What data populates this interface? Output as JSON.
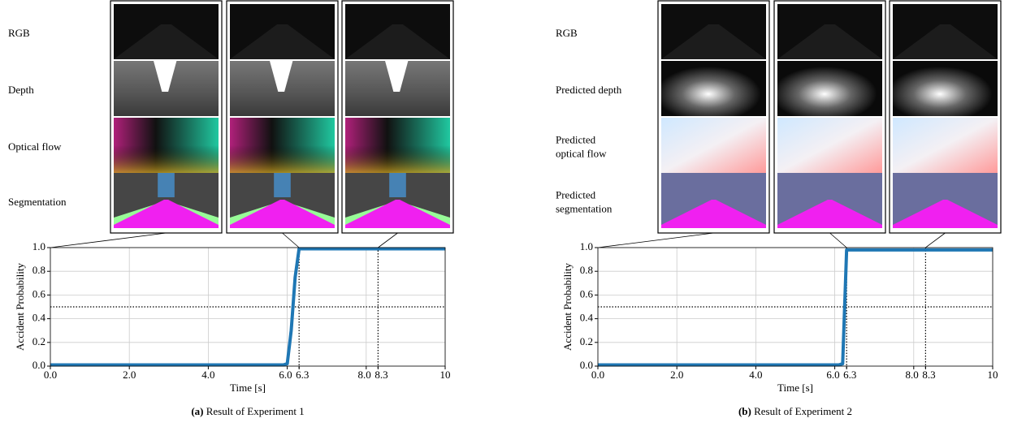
{
  "chart_data": [
    {
      "type": "line",
      "xlabel": "Time [s]",
      "ylabel": "Accident Probability",
      "caption_tag": "(a)",
      "caption": "Result of Experiment 1",
      "row_labels": [
        [
          "RGB"
        ],
        [
          "Depth"
        ],
        [
          "Optical flow"
        ],
        [
          "Segmentation"
        ]
      ],
      "x": [
        0,
        5.9,
        6.0,
        6.1,
        6.2,
        6.3,
        10
      ],
      "series": [
        {
          "color": "#1f77b4",
          "values": [
            0.01,
            0.01,
            0.02,
            0.3,
            0.75,
            0.99,
            0.99
          ]
        }
      ],
      "xlim": [
        0,
        10
      ],
      "ylim": [
        0,
        1
      ],
      "xticks": [
        {
          "value": 0,
          "label": "0.0"
        },
        {
          "value": 2,
          "label": "2.0"
        },
        {
          "value": 4,
          "label": "4.0"
        },
        {
          "value": 6,
          "label": "6.0"
        },
        6.3,
        {
          "value": 8,
          "label": "8.0"
        },
        8.3,
        10
      ],
      "yticks": [
        {
          "value": 0,
          "label": "0.0"
        },
        {
          "value": 0.2,
          "label": "0.2"
        },
        {
          "value": 0.4,
          "label": "0.4"
        },
        {
          "value": 0.6,
          "label": "0.6"
        },
        {
          "value": 0.8,
          "label": "0.8"
        },
        {
          "value": 1,
          "label": "1.0"
        }
      ],
      "threshold": 0.5,
      "markers": [
        6.3,
        8.3
      ],
      "grid": true,
      "style": "rendered"
    },
    {
      "type": "line",
      "xlabel": "Time [s]",
      "ylabel": "Accident Probability",
      "caption_tag": "(b)",
      "caption": "Result of Experiment 2",
      "row_labels": [
        [
          "RGB"
        ],
        [
          "Predicted depth"
        ],
        [
          "Predicted",
          "optical flow"
        ],
        [
          "Predicted",
          "segmentation"
        ]
      ],
      "x": [
        0,
        6.1,
        6.2,
        6.3,
        10
      ],
      "series": [
        {
          "color": "#1f77b4",
          "values": [
            0.01,
            0.01,
            0.02,
            0.98,
            0.98
          ]
        }
      ],
      "xlim": [
        0,
        10
      ],
      "ylim": [
        0,
        1
      ],
      "xticks": [
        {
          "value": 0,
          "label": "0.0"
        },
        {
          "value": 2,
          "label": "2.0"
        },
        {
          "value": 4,
          "label": "4.0"
        },
        {
          "value": 6,
          "label": "6.0"
        },
        6.3,
        {
          "value": 8,
          "label": "8.0"
        },
        8.3,
        10
      ],
      "yticks": [
        {
          "value": 0,
          "label": "0.0"
        },
        {
          "value": 0.2,
          "label": "0.2"
        },
        {
          "value": 0.4,
          "label": "0.4"
        },
        {
          "value": 0.6,
          "label": "0.6"
        },
        {
          "value": 0.8,
          "label": "0.8"
        },
        {
          "value": 1,
          "label": "1.0"
        }
      ],
      "threshold": 0.5,
      "markers": [
        6.3,
        8.3
      ],
      "grid": true,
      "style": "predicted"
    }
  ]
}
